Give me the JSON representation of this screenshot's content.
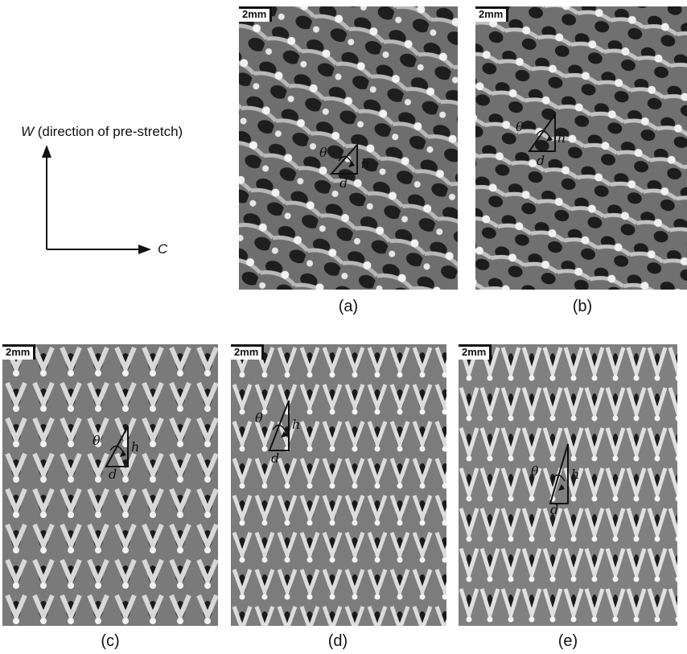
{
  "axes_diagram": {
    "vertical_label_var": "W",
    "vertical_label_text": " (direction of pre-stretch)",
    "horizontal_label_var": "C"
  },
  "panels": [
    {
      "caption": "(a)",
      "scale": "2mm",
      "theta": "θ",
      "h": "h",
      "d": "d"
    },
    {
      "caption": "(b)",
      "scale": "2mm",
      "theta": "θ",
      "h": "h",
      "d": "d"
    },
    {
      "caption": "(c)",
      "scale": "2mm",
      "theta": "θ",
      "h": "h",
      "d": "d"
    },
    {
      "caption": "(d)",
      "scale": "2mm",
      "theta": "θ",
      "h": "h",
      "d": "d"
    },
    {
      "caption": "(e)",
      "scale": "2mm",
      "theta": "θ",
      "h": "h",
      "d": "d"
    }
  ],
  "colors": {
    "fabric_dark": "#2a2a2a",
    "fabric_mid": "#8a8a8a",
    "fabric_light": "#e8e8e8"
  }
}
